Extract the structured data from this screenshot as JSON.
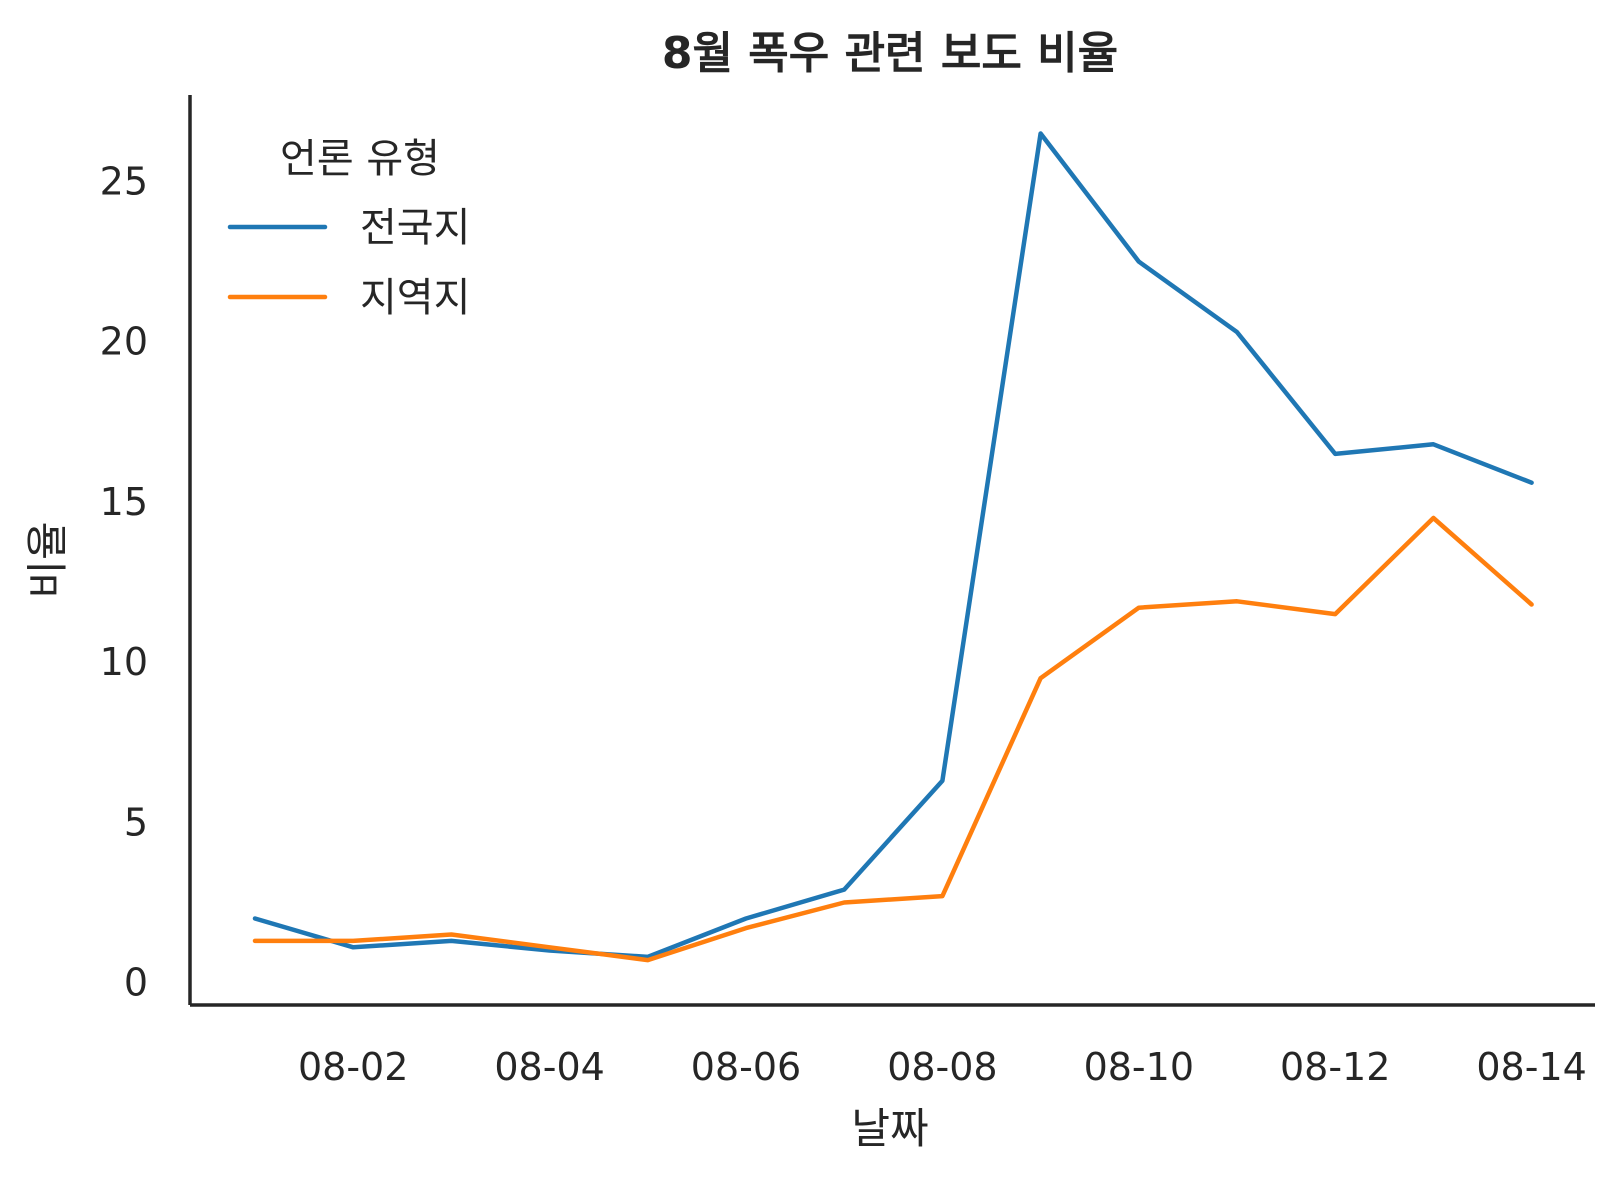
{
  "chart_data": {
    "type": "line",
    "title": "8월 폭우 관련 보도 비율",
    "xlabel": "날짜",
    "ylabel": "비율",
    "x": [
      "08-01",
      "08-02",
      "08-03",
      "08-04",
      "08-05",
      "08-06",
      "08-07",
      "08-08",
      "08-09",
      "08-10",
      "08-11",
      "08-12",
      "08-13",
      "08-14"
    ],
    "x_tick_labels": [
      "08-02",
      "08-04",
      "08-06",
      "08-08",
      "08-10",
      "08-12",
      "08-14"
    ],
    "y_ticks": [
      0,
      5,
      10,
      15,
      20,
      25
    ],
    "ylim": [
      -0.7,
      27.7
    ],
    "grid": false,
    "legend": {
      "title": "언론 유형",
      "placement": "top-left"
    },
    "series": [
      {
        "name": "전국지",
        "color": "#1f77b4",
        "values": [
          2.0,
          1.1,
          1.3,
          1.0,
          0.8,
          2.0,
          2.9,
          6.3,
          26.5,
          22.5,
          20.3,
          16.5,
          16.8,
          15.6
        ]
      },
      {
        "name": "지역지",
        "color": "#ff7f0e",
        "values": [
          1.3,
          1.3,
          1.5,
          1.1,
          0.7,
          1.7,
          2.5,
          2.7,
          9.5,
          11.7,
          11.9,
          11.5,
          14.5,
          11.8
        ]
      }
    ]
  }
}
